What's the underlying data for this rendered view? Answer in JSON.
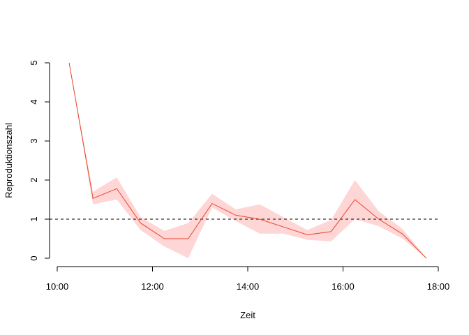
{
  "chart_data": {
    "type": "line",
    "title": "",
    "xlabel": "Zeit",
    "ylabel": "Reproduktionszahl",
    "x_ticks": [
      "10:00",
      "12:00",
      "14:00",
      "16:00",
      "18:00"
    ],
    "y_ticks": [
      "0",
      "1",
      "2",
      "3",
      "4",
      "5"
    ],
    "xlim": [
      "10:00",
      "18:00"
    ],
    "ylim": [
      0,
      5
    ],
    "grid": false,
    "reference_line": {
      "y": 1,
      "style": "dashed",
      "color": "#000000"
    },
    "series": [
      {
        "color": "#e8432b",
        "band_color": "#ffd6d6",
        "x": [
          "10:15",
          "10:45",
          "11:15",
          "11:45",
          "12:15",
          "12:45",
          "13:15",
          "13:45",
          "14:15",
          "14:45",
          "15:15",
          "15:45",
          "16:15",
          "16:45",
          "17:15",
          "17:45"
        ],
        "y": [
          5.0,
          1.53,
          1.78,
          0.9,
          0.5,
          0.5,
          1.4,
          1.1,
          1.0,
          0.8,
          0.6,
          0.68,
          1.5,
          1.0,
          0.62,
          0.0
        ],
        "lower": [
          5.0,
          1.38,
          1.5,
          0.72,
          0.3,
          0.0,
          1.3,
          0.95,
          0.63,
          0.63,
          0.47,
          0.43,
          1.0,
          0.82,
          0.5,
          0.0
        ],
        "upper": [
          5.0,
          1.7,
          2.07,
          1.05,
          0.7,
          0.9,
          1.65,
          1.25,
          1.38,
          1.05,
          0.72,
          0.98,
          2.0,
          1.2,
          0.75,
          0.0
        ]
      }
    ]
  }
}
